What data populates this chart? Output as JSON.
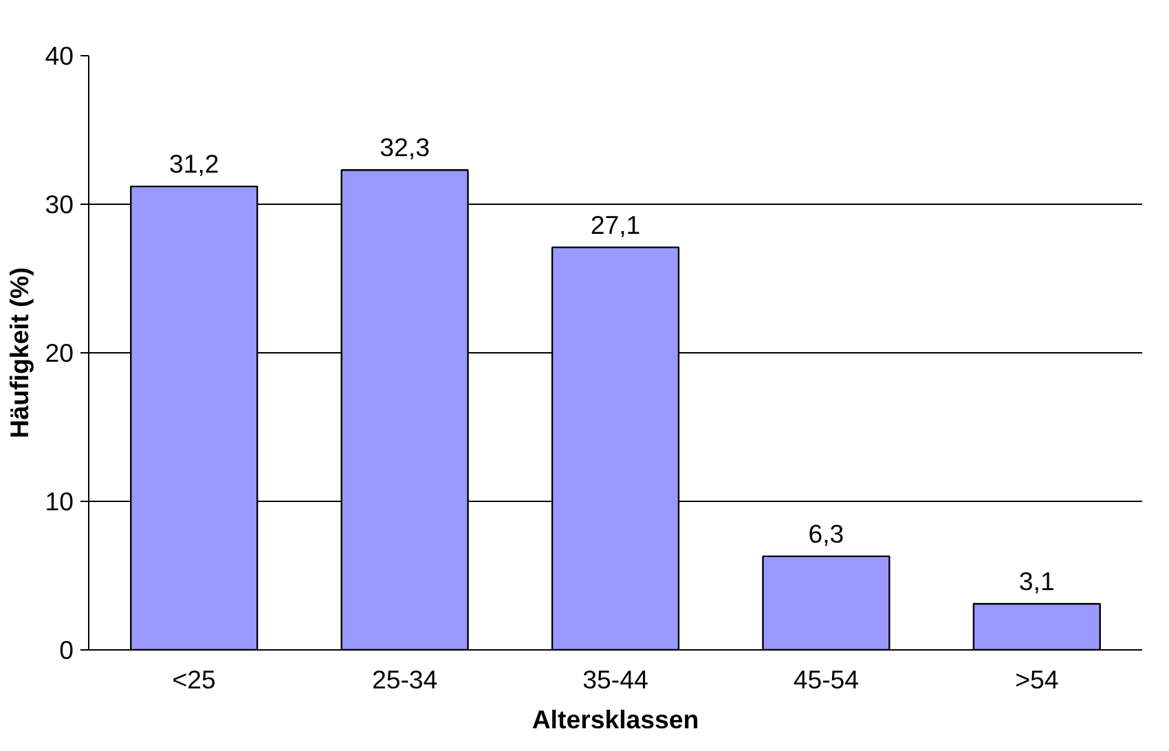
{
  "chart_data": {
    "type": "bar",
    "xlabel": "Altersklassen",
    "ylabel": "Häufigkeit (%)",
    "categories": [
      "<25",
      "25-34",
      "35-44",
      "45-54",
      ">54"
    ],
    "values": [
      31.2,
      32.3,
      27.1,
      6.3,
      3.1
    ],
    "value_labels": [
      "31,2",
      "32,3",
      "27,1",
      "6,3",
      "3,1"
    ],
    "color": "#9999ff",
    "ylim": [
      0,
      40
    ],
    "yticks": [
      0,
      10,
      20,
      30,
      40
    ],
    "grid": "y"
  }
}
